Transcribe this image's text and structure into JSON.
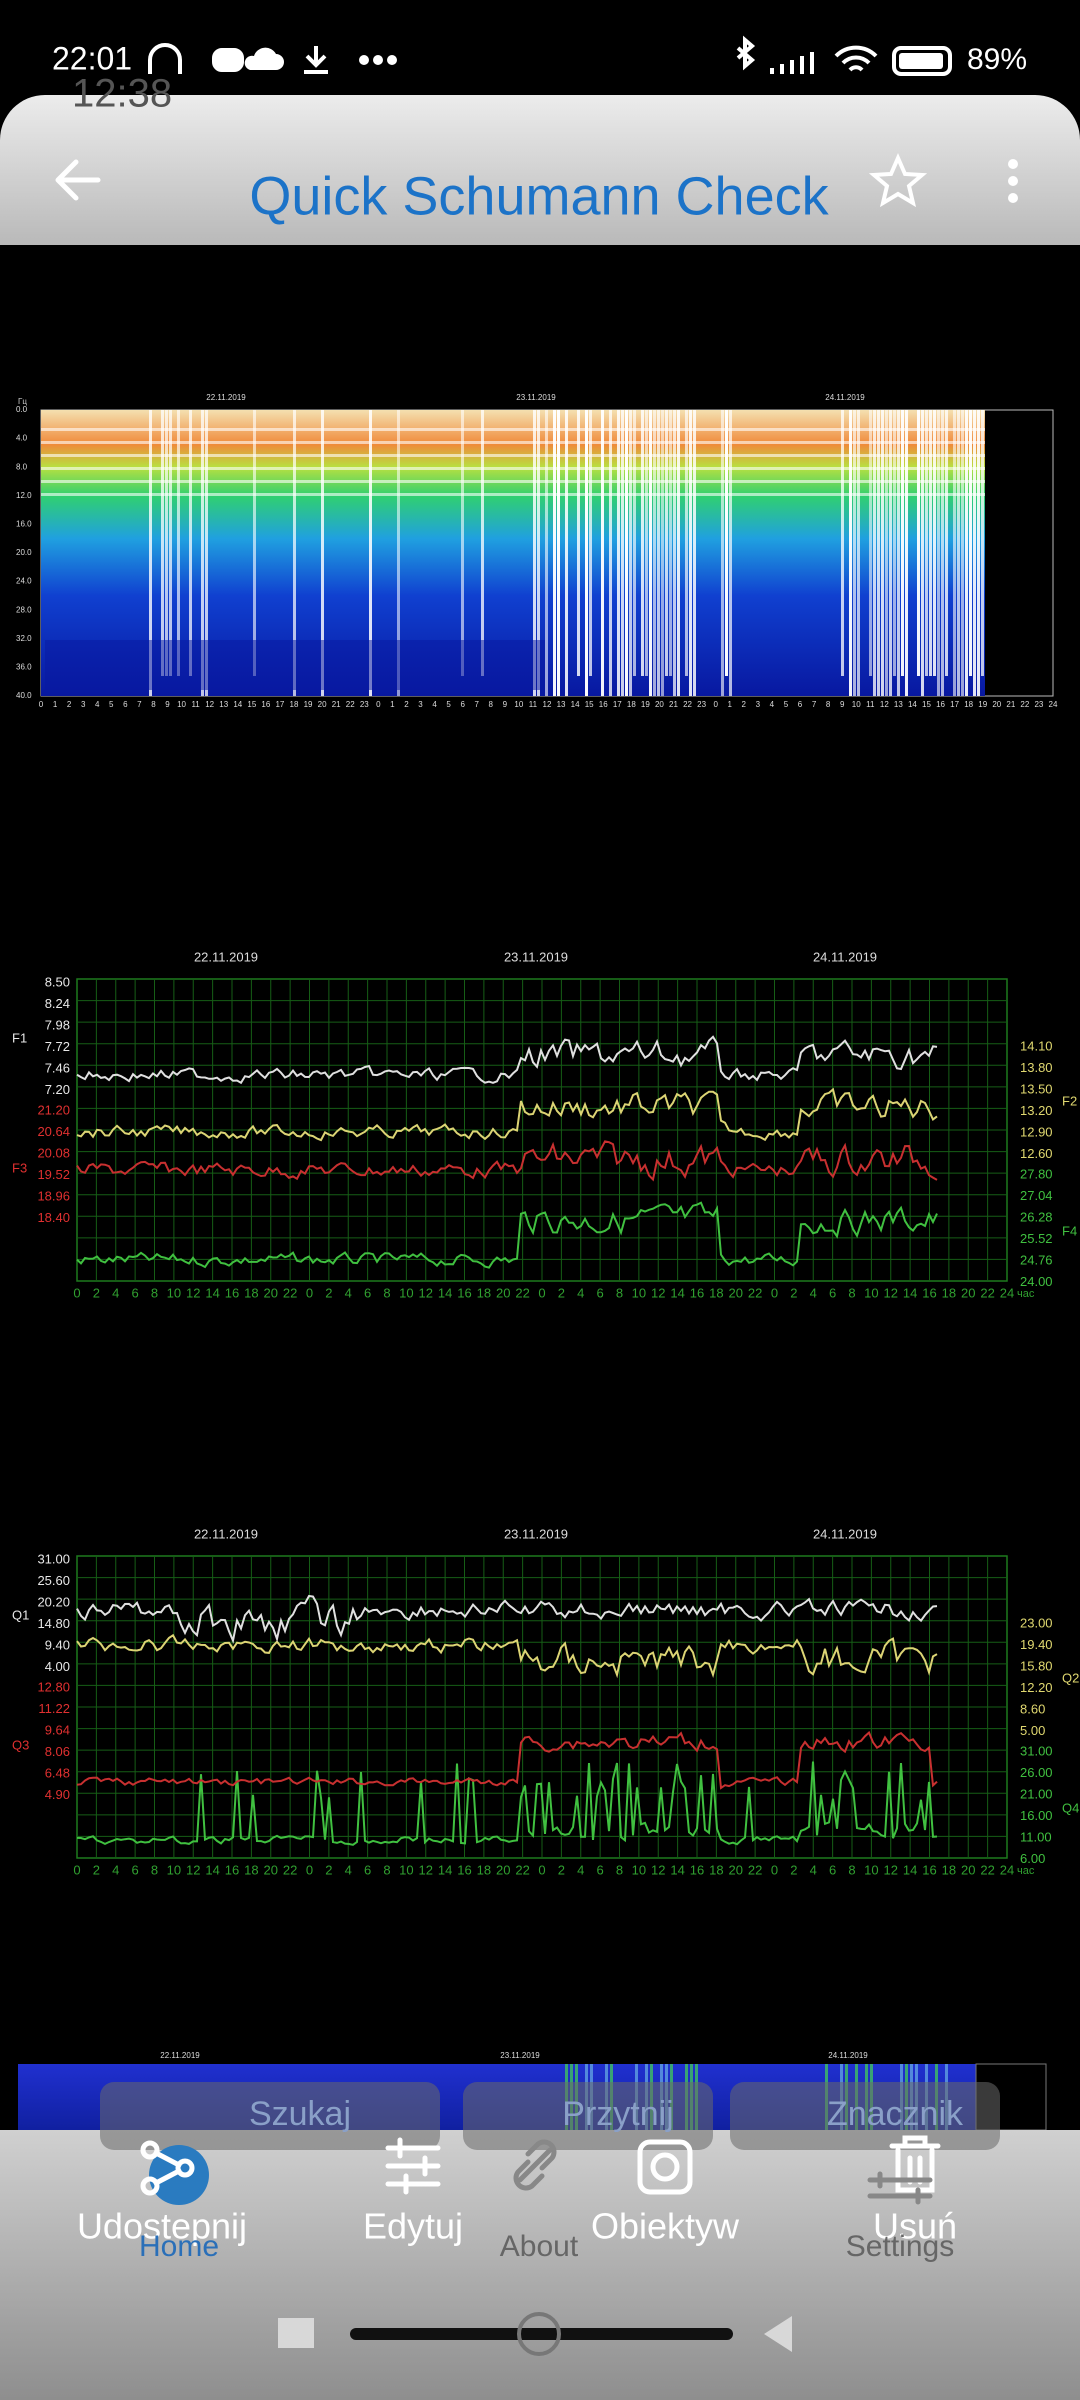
{
  "status_bar": {
    "time": "22:01",
    "battery": "89%",
    "ghost_time": "12:38"
  },
  "header": {
    "title": "Quick Schumann Check"
  },
  "spectrogram": {
    "unit": "Гц",
    "dates": [
      "22.11.2019",
      "23.11.2019",
      "24.11.2019"
    ],
    "y_labels": [
      "0.0",
      "4.0",
      "8.0",
      "12.0",
      "16.0",
      "20.0",
      "24.0",
      "28.0",
      "32.0",
      "36.0",
      "40.0"
    ],
    "x_labels": [
      "0",
      "1",
      "2",
      "3",
      "4",
      "5",
      "6",
      "7",
      "8",
      "9",
      "10",
      "11",
      "12",
      "13",
      "14",
      "15",
      "16",
      "17",
      "18",
      "19",
      "20",
      "21",
      "22",
      "23",
      "0",
      "1",
      "2",
      "3",
      "4",
      "5",
      "6",
      "7",
      "8",
      "9",
      "10",
      "11",
      "12",
      "13",
      "14",
      "15",
      "16",
      "17",
      "18",
      "19",
      "20",
      "21",
      "22",
      "23",
      "0",
      "1",
      "2",
      "3",
      "4",
      "5",
      "6",
      "7",
      "8",
      "9",
      "10",
      "11",
      "12",
      "13",
      "14",
      "15",
      "16",
      "17",
      "18",
      "19",
      "20",
      "21",
      "22",
      "23",
      "24"
    ]
  },
  "chart_f": {
    "dates": [
      "22.11.2019",
      "23.11.2019",
      "24.11.2019"
    ],
    "series_labels": {
      "left_top": "F1",
      "left_bottom": "F3",
      "right_top": "F2",
      "right_bottom": "F4"
    },
    "left_top": [
      "8.50",
      "8.24",
      "7.98",
      "7.72",
      "7.46",
      "7.20"
    ],
    "left_bottom": [
      "21.20",
      "20.64",
      "20.08",
      "19.52",
      "18.96",
      "18.40"
    ],
    "right_top": [
      "14.10",
      "13.80",
      "13.50",
      "13.20",
      "12.90",
      "12.60"
    ],
    "right_bottom": [
      "27.80",
      "27.04",
      "26.28",
      "25.52",
      "24.76",
      "24.00"
    ],
    "x_labels": [
      "0",
      "2",
      "4",
      "6",
      "8",
      "10",
      "12",
      "14",
      "16",
      "18",
      "20",
      "22",
      "0",
      "2",
      "4",
      "6",
      "8",
      "10",
      "12",
      "14",
      "16",
      "18",
      "20",
      "22",
      "0",
      "2",
      "4",
      "6",
      "8",
      "10",
      "12",
      "14",
      "16",
      "18",
      "20",
      "22",
      "0",
      "2",
      "4",
      "6",
      "8",
      "10",
      "12",
      "14",
      "16",
      "18",
      "20",
      "22",
      "24"
    ],
    "x_unit": "час"
  },
  "chart_q": {
    "dates": [
      "22.11.2019",
      "23.11.2019",
      "24.11.2019"
    ],
    "series_labels": {
      "left_top": "Q1",
      "left_bottom": "Q3",
      "right_top": "Q2",
      "right_bottom": "Q4"
    },
    "left_top": [
      "31.00",
      "25.60",
      "20.20",
      "14.80",
      "9.40",
      "4.00"
    ],
    "left_bottom": [
      "12.80",
      "11.22",
      "9.64",
      "8.06",
      "6.48",
      "4.90"
    ],
    "right_top": [
      "23.00",
      "19.40",
      "15.80",
      "12.20",
      "8.60",
      "5.00"
    ],
    "right_bottom": [
      "31.00",
      "26.00",
      "21.00",
      "16.00",
      "11.00",
      "6.00"
    ],
    "x_labels": [
      "0",
      "2",
      "4",
      "6",
      "8",
      "10",
      "12",
      "14",
      "16",
      "18",
      "20",
      "22",
      "0",
      "2",
      "4",
      "6",
      "8",
      "10",
      "12",
      "14",
      "16",
      "18",
      "20",
      "22",
      "0",
      "2",
      "4",
      "6",
      "8",
      "10",
      "12",
      "14",
      "16",
      "18",
      "20",
      "22",
      "0",
      "2",
      "4",
      "6",
      "8",
      "10",
      "12",
      "14",
      "16",
      "18",
      "20",
      "22",
      "24"
    ],
    "x_unit": "час"
  },
  "bottom_strip": {
    "dates": [
      "22.11.2019",
      "23.11.2019",
      "24.11.2019"
    ]
  },
  "toolbar_pills": [
    "Szukaj",
    "Przytnij",
    "Znacznik"
  ],
  "actions": [
    "Udostepnij",
    "Edytuj",
    "Obiektyw",
    "Usuń"
  ],
  "tabs": [
    "Home",
    "About",
    "Settings"
  ]
}
